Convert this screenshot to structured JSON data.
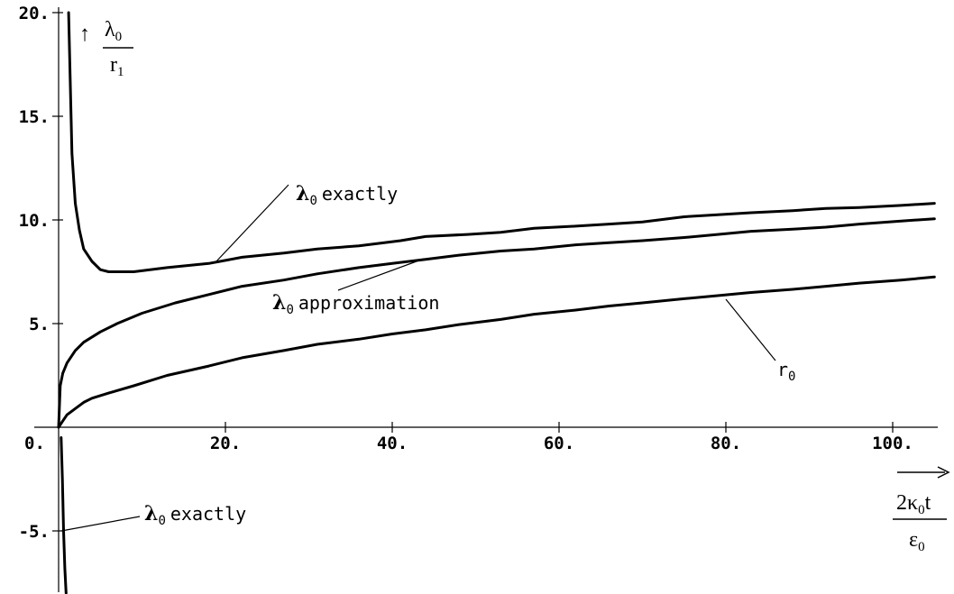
{
  "chart_data": {
    "type": "line",
    "title": "",
    "xlim": [
      0,
      108
    ],
    "ylim": [
      -8,
      20
    ],
    "x_ticks": [
      20,
      40,
      60,
      80,
      100
    ],
    "y_ticks": [
      -5,
      5,
      10,
      15,
      20
    ],
    "x_tick_labels": [
      "20.",
      "40.",
      "60.",
      "80.",
      "100."
    ],
    "y_tick_labels": [
      "-5.",
      "5.",
      "10.",
      "15.",
      "20."
    ],
    "origin_label": "0.",
    "y_axis_label": {
      "arrow": "↑",
      "num": "λ",
      "num_sub": "0",
      "den": "r",
      "den_sub": "1"
    },
    "x_axis_label": {
      "arrow": "→",
      "num": "2κ",
      "num_sub": "0",
      "num_tail": "t",
      "den": "ε",
      "den_sub": "0"
    },
    "series": [
      {
        "name": "λ0 exactly",
        "x": [
          1.2,
          1.4,
          1.6,
          2.0,
          2.5,
          3.0,
          4.0,
          5.0,
          6.0,
          9.0,
          13.0,
          18.0,
          22.0,
          27.0,
          31.0,
          36.0,
          41.0,
          44.0,
          49.0,
          53.0,
          57.0,
          62.0,
          66.0,
          70.0,
          75.0,
          79.0,
          83.0,
          88.0,
          92.0,
          96.0,
          101.0,
          105.0
        ],
        "y": [
          20.0,
          16.5,
          13.2,
          10.8,
          9.5,
          8.6,
          8.0,
          7.6,
          7.5,
          7.5,
          7.7,
          7.9,
          8.2,
          8.4,
          8.6,
          8.75,
          9.0,
          9.2,
          9.3,
          9.4,
          9.6,
          9.7,
          9.8,
          9.9,
          10.15,
          10.25,
          10.35,
          10.45,
          10.55,
          10.6,
          10.7,
          10.8
        ]
      },
      {
        "name": "λ0 approximation",
        "x": [
          0.0,
          0.2,
          0.5,
          1.0,
          2.0,
          3.0,
          5.0,
          7.0,
          10.0,
          14.0,
          18.0,
          22.0,
          27.0,
          31.0,
          36.0,
          40.0,
          44.0,
          48.0,
          53.0,
          57.0,
          62.0,
          66.0,
          70.0,
          75.0,
          79.0,
          83.0,
          88.0,
          92.0,
          96.0,
          101.0,
          105.0
        ],
        "y": [
          0.0,
          2.0,
          2.6,
          3.1,
          3.7,
          4.1,
          4.6,
          5.0,
          5.5,
          6.0,
          6.4,
          6.8,
          7.1,
          7.4,
          7.7,
          7.9,
          8.1,
          8.3,
          8.5,
          8.6,
          8.8,
          8.9,
          9.0,
          9.15,
          9.3,
          9.45,
          9.55,
          9.65,
          9.8,
          9.95,
          10.05
        ]
      },
      {
        "name": "r0",
        "x": [
          0.0,
          0.5,
          1.0,
          2.0,
          3.0,
          4.0,
          6.0,
          9.0,
          13.0,
          18.0,
          22.0,
          27.0,
          31.0,
          36.0,
          40.0,
          44.0,
          48.0,
          53.0,
          57.0,
          62.0,
          66.0,
          70.0,
          75.0,
          79.0,
          83.0,
          88.0,
          92.0,
          96.0,
          101.0,
          105.0
        ],
        "y": [
          0.0,
          0.3,
          0.6,
          0.9,
          1.2,
          1.4,
          1.65,
          2.0,
          2.5,
          2.95,
          3.35,
          3.7,
          4.0,
          4.25,
          4.5,
          4.7,
          4.95,
          5.2,
          5.45,
          5.65,
          5.85,
          6.0,
          6.2,
          6.35,
          6.5,
          6.65,
          6.8,
          6.95,
          7.1,
          7.25
        ]
      },
      {
        "name": "λ0 exactly",
        "x": [
          0.3,
          0.45,
          0.6,
          0.75,
          0.9
        ],
        "y": [
          -0.5,
          -2.5,
          -5.0,
          -6.8,
          -8.0
        ]
      }
    ],
    "annotations": [
      {
        "sym": "λ",
        "sub": "0",
        "text": "exactly",
        "target": [
          19,
          7.9
        ]
      },
      {
        "sym": "λ",
        "sub": "0",
        "text": "approximation",
        "target": [
          44,
          8.1
        ]
      },
      {
        "sym": "r",
        "sub": "0",
        "text": "",
        "target": [
          80,
          6.4
        ]
      },
      {
        "sym": "λ",
        "sub": "0",
        "text": "exactly",
        "target": [
          0.4,
          -5.0
        ]
      }
    ],
    "grid": false
  }
}
